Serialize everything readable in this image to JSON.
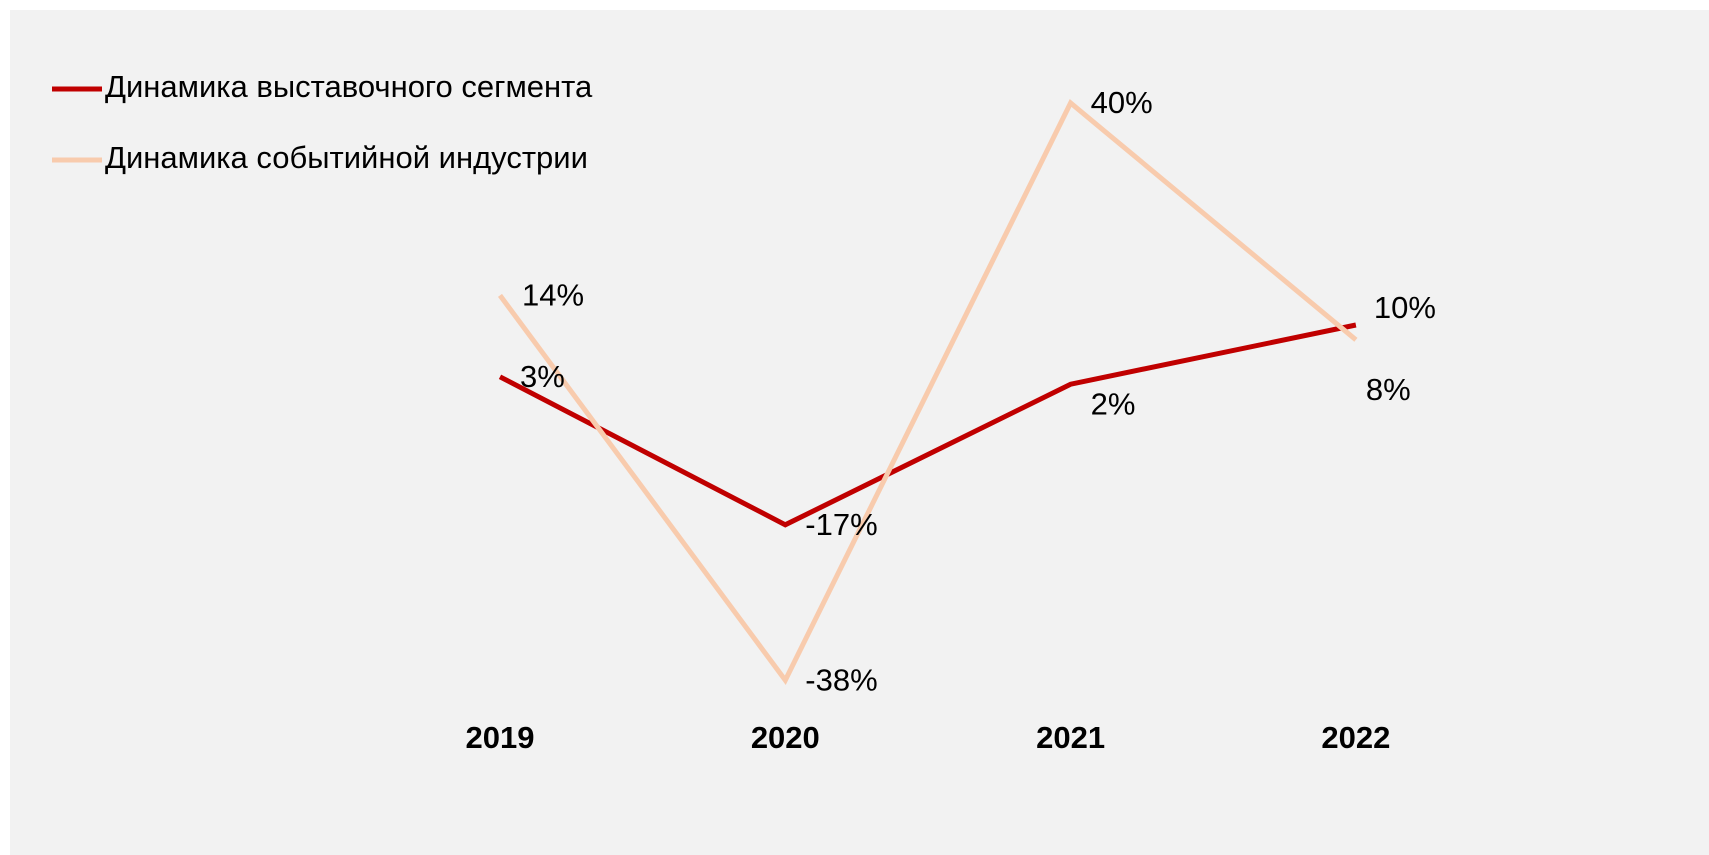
{
  "chart_data": {
    "type": "line",
    "categories": [
      "2019",
      "2020",
      "2021",
      "2022"
    ],
    "series": [
      {
        "name": "Динамика выставочного сегмента",
        "color": "#c00000",
        "values": [
          3,
          -17,
          2,
          10
        ],
        "value_labels": [
          "3%",
          "-17%",
          "2%",
          "10%"
        ]
      },
      {
        "name": "Динамика событийной индустрии",
        "color": "#f8cbad",
        "values": [
          14,
          -38,
          40,
          8
        ],
        "value_labels": [
          "14%",
          "-38%",
          "40%",
          "8%"
        ]
      }
    ],
    "ylim": [
      -40,
      40
    ],
    "legend": "top-left"
  }
}
